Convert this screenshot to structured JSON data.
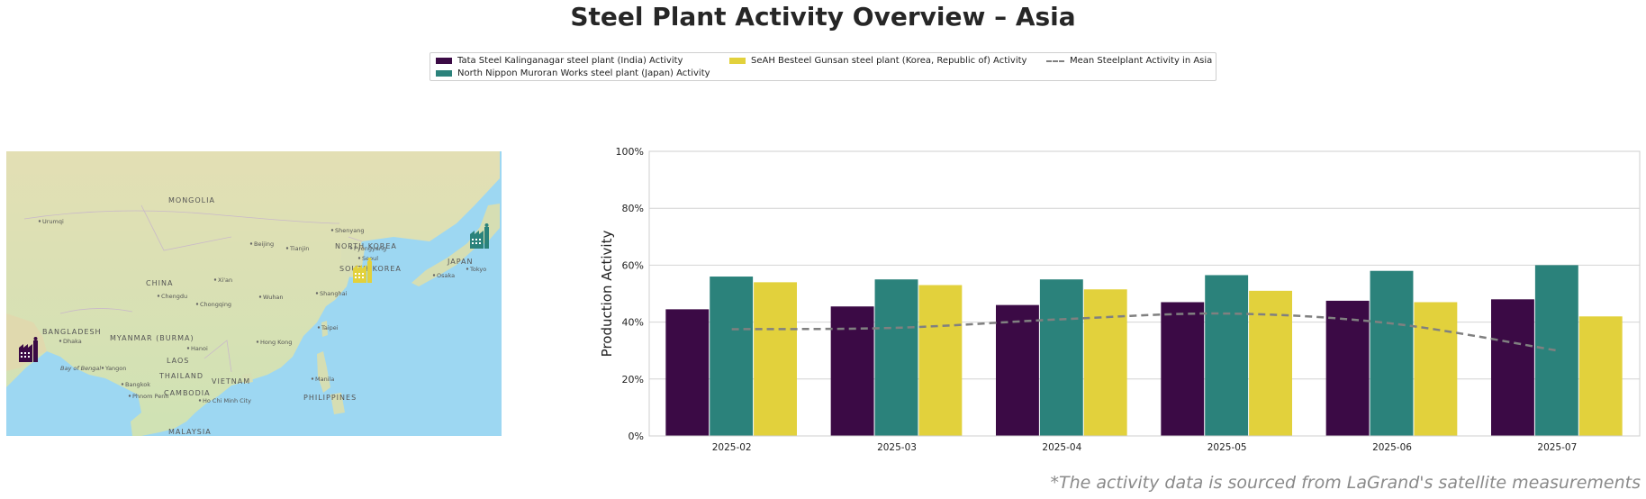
{
  "title": "Steel Plant Activity Overview – Asia",
  "footnote": "*The activity data is sourced from LaGrand's satellite measurements",
  "legend": {
    "items": [
      {
        "label": "Tata Steel Kalinganagar steel plant (India) Activity",
        "color": "#3b0a45",
        "kind": "bar"
      },
      {
        "label": "North Nippon Muroran Works steel plant (Japan) Activity",
        "color": "#2b827b",
        "kind": "bar"
      },
      {
        "label": "SeAH Besteel Gunsan steel plant (Korea, Republic of) Activity",
        "color": "#e2d13c",
        "kind": "bar"
      },
      {
        "label": "Mean Steelplant Activity in Asia",
        "color": "#808080",
        "kind": "dashed-line"
      }
    ]
  },
  "map": {
    "labels": [
      {
        "text": "MONGOLIA",
        "cls": "country"
      },
      {
        "text": "CHINA",
        "cls": "country"
      },
      {
        "text": "SOUTH KOREA",
        "cls": "country"
      },
      {
        "text": "NORTH KOREA",
        "cls": "country"
      },
      {
        "text": "JAPAN",
        "cls": "country"
      },
      {
        "text": "BANGLADESH",
        "cls": "country"
      },
      {
        "text": "MYANMAR (BURMA)",
        "cls": "country"
      },
      {
        "text": "THAILAND",
        "cls": "country"
      },
      {
        "text": "LAOS",
        "cls": "country"
      },
      {
        "text": "VIETNAM",
        "cls": "country"
      },
      {
        "text": "CAMBODIA",
        "cls": "country"
      },
      {
        "text": "PHILIPPINES",
        "cls": "country"
      },
      {
        "text": "MALAYSIA",
        "cls": "country"
      },
      {
        "text": "Bay of Bengal",
        "cls": "sea"
      },
      {
        "text": "Urumqi",
        "cls": "city"
      },
      {
        "text": "Beijing",
        "cls": "city"
      },
      {
        "text": "Tianjin",
        "cls": "city"
      },
      {
        "text": "Shenyang",
        "cls": "city"
      },
      {
        "text": "Pyongyang",
        "cls": "city"
      },
      {
        "text": "Seoul",
        "cls": "city"
      },
      {
        "text": "Osaka",
        "cls": "city"
      },
      {
        "text": "Tokyo",
        "cls": "city"
      },
      {
        "text": "Xi'an",
        "cls": "city"
      },
      {
        "text": "Chengdu",
        "cls": "city"
      },
      {
        "text": "Chongqing",
        "cls": "city"
      },
      {
        "text": "Wuhan",
        "cls": "city"
      },
      {
        "text": "Shanghai",
        "cls": "city"
      },
      {
        "text": "Taipei",
        "cls": "city"
      },
      {
        "text": "Hong Kong",
        "cls": "city"
      },
      {
        "text": "Hanoi",
        "cls": "city"
      },
      {
        "text": "Dhaka",
        "cls": "city"
      },
      {
        "text": "Yangon",
        "cls": "city"
      },
      {
        "text": "Bangkok",
        "cls": "city"
      },
      {
        "text": "Phnom Penh",
        "cls": "city"
      },
      {
        "text": "Ho Chi Minh City",
        "cls": "city"
      },
      {
        "text": "Manila",
        "cls": "city"
      }
    ],
    "markers": [
      {
        "name": "plant-marker-india",
        "color": "#3b0a45"
      },
      {
        "name": "plant-marker-korea",
        "color": "#e2d13c"
      },
      {
        "name": "plant-marker-japan",
        "color": "#2b827b"
      }
    ]
  },
  "chart_data": {
    "type": "bar",
    "title": "",
    "xlabel": "",
    "ylabel": "Production Activity",
    "categories": [
      "2025-02",
      "2025-03",
      "2025-04",
      "2025-05",
      "2025-06",
      "2025-07"
    ],
    "ylim": [
      0,
      100
    ],
    "yticks": [
      "0%",
      "20%",
      "40%",
      "60%",
      "80%",
      "100%"
    ],
    "grid": true,
    "legend_position": "top-center",
    "series": [
      {
        "name": "Tata Steel Kalinganagar steel plant (India) Activity",
        "color": "#3b0a45",
        "values": [
          44.5,
          45.5,
          46,
          47,
          47.5,
          48
        ]
      },
      {
        "name": "North Nippon Muroran Works steel plant (Japan) Activity",
        "color": "#2b827b",
        "values": [
          56,
          55,
          55,
          56.5,
          58,
          60
        ]
      },
      {
        "name": "SeAH Besteel Gunsan steel plant (Korea, Republic of) Activity",
        "color": "#e2d13c",
        "values": [
          54,
          53,
          51.5,
          51,
          47,
          42
        ]
      }
    ],
    "line": {
      "name": "Mean Steelplant Activity in Asia",
      "color": "#808080",
      "style": "dashed",
      "values": [
        37.5,
        38,
        41,
        43,
        39.5,
        30
      ]
    }
  }
}
